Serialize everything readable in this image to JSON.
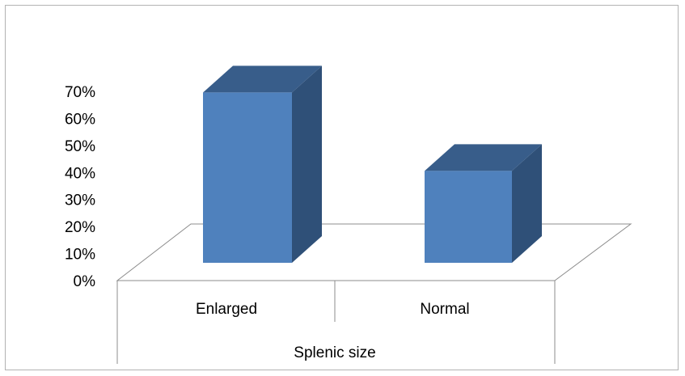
{
  "chart_data": {
    "type": "bar",
    "style": "3d-column",
    "categories": [
      "Enlarged",
      "Normal"
    ],
    "values": [
      0.63,
      0.34
    ],
    "ylim": [
      0,
      0.7
    ],
    "yticks": [
      0,
      0.1,
      0.2,
      0.3,
      0.4,
      0.5,
      0.6,
      0.7
    ],
    "ytick_labels": [
      "0%",
      "10%",
      "20%",
      "30%",
      "40%",
      "50%",
      "60%",
      "70%"
    ],
    "xlabel": "Splenic size",
    "ylabel": "",
    "title": "",
    "grid": false,
    "legend": "none",
    "colors": {
      "bar_front": "#4f81bd",
      "bar_side": "#2f5078",
      "bar_top": "#385d8a",
      "floor_line": "#8c8c8c"
    }
  }
}
